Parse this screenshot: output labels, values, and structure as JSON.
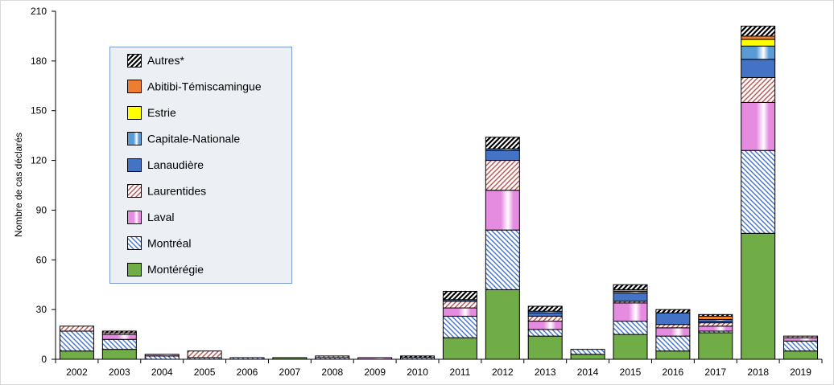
{
  "chart_data": {
    "type": "bar",
    "stacked": true,
    "ylabel": "Nombre de cas déclarés",
    "ylim": [
      0,
      210
    ],
    "yticks": [
      0,
      30,
      60,
      90,
      120,
      150,
      180,
      210
    ],
    "grid": false,
    "legend": "top-left",
    "categories": [
      "2002",
      "2003",
      "2004",
      "2005",
      "2006",
      "2007",
      "2008",
      "2009",
      "2010",
      "2011",
      "2012",
      "2013",
      "2014",
      "2015",
      "2016",
      "2017",
      "2018",
      "2019"
    ],
    "series": [
      {
        "name": "Autres*",
        "color": "#000000",
        "values": [
          0,
          1,
          0,
          0,
          0,
          0,
          0,
          0,
          1,
          5,
          7,
          3,
          0,
          3,
          2,
          1,
          6,
          0
        ]
      },
      {
        "name": "Abitibi-Témiscamingue",
        "color": "#ed7d31",
        "values": [
          0,
          0,
          0,
          0,
          0,
          0,
          0,
          0,
          0,
          0,
          0,
          0,
          0,
          1,
          0,
          2,
          2,
          0
        ]
      },
      {
        "name": "Estrie",
        "color": "#ffff00",
        "values": [
          0,
          0,
          0,
          0,
          0,
          0,
          0,
          0,
          0,
          0,
          0,
          0,
          0,
          0,
          0,
          0,
          4,
          0
        ]
      },
      {
        "name": "Capitale-Nationale",
        "color": "#5b9bd5",
        "values": [
          0,
          0,
          0,
          0,
          0,
          0,
          0,
          0,
          0,
          0,
          1,
          1,
          0,
          1,
          0,
          1,
          8,
          0
        ]
      },
      {
        "name": "Lanaudière",
        "color": "#4472c4",
        "values": [
          0,
          0,
          0,
          0,
          0,
          0,
          0,
          0,
          0,
          1,
          6,
          2,
          0,
          5,
          7,
          1,
          11,
          0
        ]
      },
      {
        "name": "Laurentides",
        "color": "#c0504d",
        "values": [
          3,
          1,
          0,
          4,
          0,
          0,
          1,
          0,
          0,
          4,
          18,
          3,
          0,
          1,
          2,
          2,
          15,
          1
        ]
      },
      {
        "name": "Laval",
        "color": "#e58be0",
        "values": [
          0,
          3,
          1,
          0,
          0,
          0,
          0,
          1,
          0,
          5,
          24,
          5,
          0,
          11,
          5,
          3,
          29,
          2
        ]
      },
      {
        "name": "Montréal",
        "color": "#4472c4",
        "values": [
          12,
          6,
          2,
          1,
          1,
          0,
          1,
          0,
          1,
          13,
          36,
          4,
          3,
          8,
          9,
          1,
          50,
          6
        ]
      },
      {
        "name": "Montérégie",
        "color": "#70ad47",
        "values": [
          5,
          6,
          0,
          0,
          0,
          1,
          0,
          0,
          0,
          13,
          42,
          14,
          3,
          15,
          5,
          16,
          76,
          5
        ]
      }
    ]
  }
}
